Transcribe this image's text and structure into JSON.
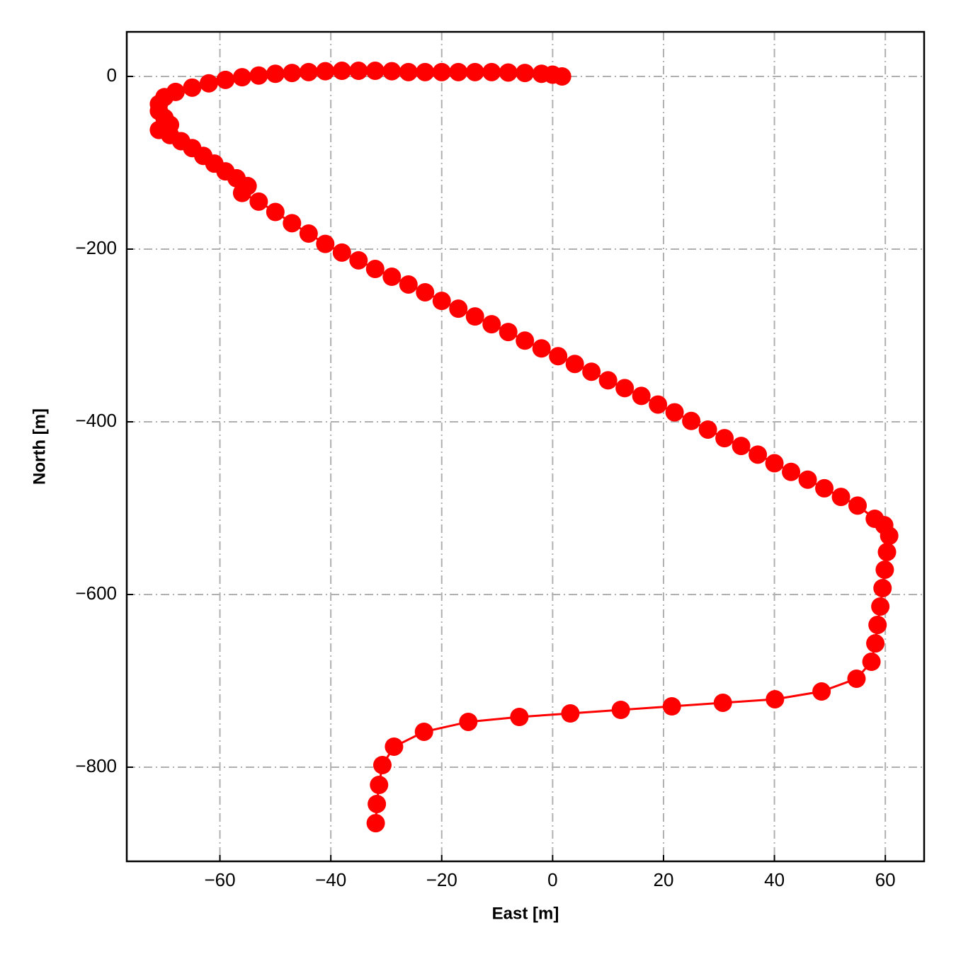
{
  "chart_data": {
    "type": "line",
    "xlabel": "East [m]",
    "ylabel": "North [m]",
    "color": "#ff0000",
    "grid": true,
    "markers": true,
    "xlim": [
      -76.8,
      67.0
    ],
    "ylim": [
      51.6,
      -909
    ],
    "xticks": [
      {
        "value": -60,
        "label": "−60"
      },
      {
        "value": -40,
        "label": "−40"
      },
      {
        "value": -20,
        "label": "−20"
      },
      0,
      20,
      40,
      60
    ],
    "yticks": [
      0,
      {
        "value": -200,
        "label": "−200"
      },
      {
        "value": -400,
        "label": "−400"
      },
      {
        "value": -600,
        "label": "−600"
      },
      {
        "value": -800,
        "label": "−800"
      }
    ],
    "x": [
      1.7,
      0,
      -2,
      -5,
      -8,
      -11,
      -14,
      -17,
      -20,
      -23,
      -26,
      -29,
      -32,
      -35,
      -38,
      -41,
      -44,
      -47,
      -50,
      -53,
      -56,
      -59,
      -62,
      -65,
      -68,
      -70,
      -71,
      -71,
      -70,
      -69,
      -71,
      -69,
      -67,
      -65,
      -63,
      -61,
      -59,
      -57,
      -55,
      -56,
      -53,
      -50,
      -47,
      -44,
      -41,
      -38,
      -35,
      -32,
      -29,
      -26,
      -23,
      -20,
      -17,
      -14,
      -11,
      -8,
      -5,
      -2,
      1,
      4,
      7,
      10,
      13,
      16,
      19,
      22,
      25,
      28,
      31,
      34,
      37,
      40,
      43,
      46,
      49,
      52,
      55,
      58.1,
      59.8,
      60.7,
      60.3,
      59.9,
      59.5,
      59.1,
      58.6,
      58.2,
      57.5,
      54.8,
      48.5,
      40.1,
      30.7,
      21.5,
      12.3,
      3.2,
      -6.0,
      -15.2,
      -23.2,
      -28.6,
      -30.7,
      -31.3,
      -31.7,
      -31.9
    ],
    "values": [
      0,
      2,
      3,
      4,
      4.5,
      5,
      5,
      5,
      5,
      5,
      5,
      6,
      6.5,
      6.5,
      6.5,
      6,
      5,
      4,
      3,
      1,
      -1,
      -4,
      -8,
      -13,
      -18,
      -24,
      -32,
      -40,
      -48,
      -56,
      -62,
      -68,
      -75,
      -83,
      -92,
      -101,
      -110,
      -118,
      -127,
      -135,
      -145,
      -157,
      -170,
      -182,
      -194,
      -204,
      -213,
      -223,
      -232,
      -241,
      -250,
      -260,
      -269,
      -278,
      -287,
      -296,
      -306,
      -315,
      -324,
      -333,
      -342,
      -352,
      -361,
      -370,
      -380,
      -389,
      -399,
      -409,
      -419,
      -428,
      -438,
      -448,
      -458,
      -467,
      -477,
      -487,
      -497,
      -512.3,
      -519.7,
      -532.0,
      -550.8,
      -571.3,
      -592.6,
      -613.9,
      -635.2,
      -656.6,
      -677.9,
      -697.5,
      -712.3,
      -721.3,
      -725.4,
      -729.5,
      -733.6,
      -737.7,
      -741.8,
      -747.5,
      -759.0,
      -776.2,
      -797.5,
      -820.5,
      -842.6,
      -864.8
    ]
  }
}
